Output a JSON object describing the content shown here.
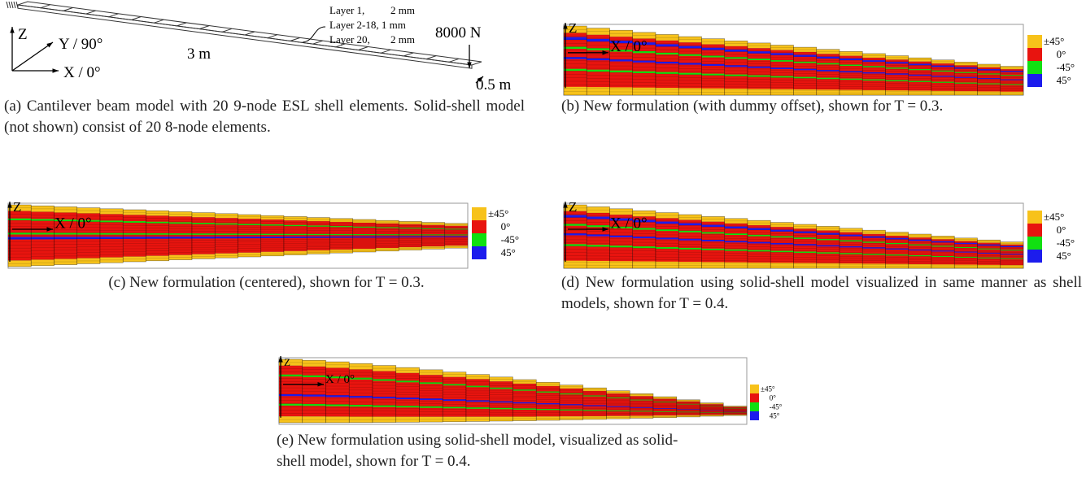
{
  "panel_a": {
    "z_axis": "Z",
    "y_axis": "Y / 90°",
    "x_axis": "X / 0°",
    "length": "3 m",
    "width": "0.5 m",
    "load": "8000 N",
    "layers": [
      {
        "name": "Layer 1,",
        "thickness": "2 mm"
      },
      {
        "name": "Layer 2-18, 1 mm"
      },
      {
        "name": "Layer 20,",
        "thickness": "2 mm"
      }
    ]
  },
  "axis_labels": {
    "z": "Z",
    "x": "X / 0°"
  },
  "legend": [
    "±45°",
    "0°",
    "-45°",
    "45°"
  ],
  "captions": {
    "a": "(a) Cantilever beam model with 20 9-node ESL shell elements. Solid-shell model (not shown) consist of 20 8-node elements.",
    "b": "(b) New formulation (with dummy offset), shown for T = 0.3.",
    "c": "(c) New formulation (centered), shown for T = 0.3.",
    "d": "(d) New formulation using solid-shell model visualized in same manner as shell models, shown for T = 0.4.",
    "e": "(e) New formulation using solid-shell model, visualized as solid-shell model, shown for T = 0.4."
  }
}
